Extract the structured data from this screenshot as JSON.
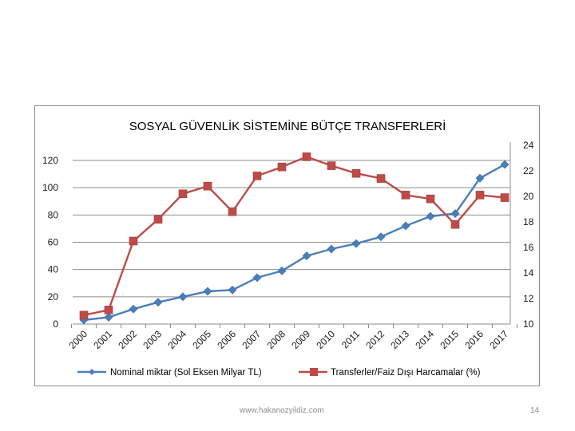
{
  "chart_data": {
    "type": "line",
    "title": "SOSYAL GÜVENLİK SİSTEMİNE BÜTÇE TRANSFERLERİ",
    "categories": [
      "2000",
      "2001",
      "2002",
      "2003",
      "2004",
      "2005",
      "2006",
      "2007",
      "2008",
      "2009",
      "2010",
      "2011",
      "2012",
      "2013",
      "2014",
      "2015",
      "2016",
      "2017"
    ],
    "left_axis": {
      "ylim": [
        0,
        120
      ],
      "ticks": [
        "0",
        "20",
        "40",
        "60",
        "80",
        "100",
        "120"
      ],
      "tick_values": [
        0,
        20,
        40,
        60,
        80,
        100,
        120
      ]
    },
    "right_axis": {
      "ylim": [
        10,
        24
      ],
      "ticks": [
        "10",
        "12",
        "14",
        "16",
        "18",
        "20",
        "22",
        "24"
      ],
      "tick_values": [
        10,
        12,
        14,
        16,
        18,
        20,
        22,
        24
      ]
    },
    "grid": true,
    "legend_position": "bottom",
    "series": [
      {
        "name": "Nominal miktar (Sol Eksen Milyar TL)",
        "axis": "left",
        "marker": "diamond",
        "color": "#4a7ebb",
        "values": [
          3,
          5,
          11,
          16,
          20,
          24,
          25,
          34,
          39,
          50,
          55,
          59,
          64,
          72,
          79,
          81,
          107,
          117
        ]
      },
      {
        "name": "Transferler/Faiz Dışı Harcamalar (%)",
        "axis": "right",
        "marker": "square",
        "color": "#be4b48",
        "values": [
          10.7,
          11.1,
          16.5,
          18.2,
          20.2,
          20.8,
          18.8,
          21.6,
          22.3,
          23.1,
          22.4,
          21.8,
          21.4,
          20.1,
          19.8,
          17.8,
          20.1,
          19.9
        ]
      }
    ]
  },
  "footer": {
    "url": "www.hakanozyildiz.com",
    "page_number": "14"
  }
}
